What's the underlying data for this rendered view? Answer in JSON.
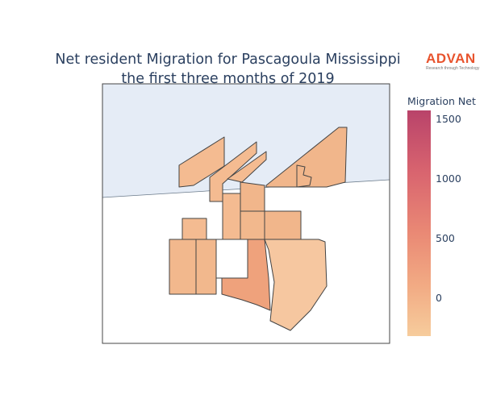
{
  "title": {
    "line1": "Net resident Migration for Pascagoula Mississippi",
    "line2": "the first three months of 2019"
  },
  "logo": {
    "name": "ADVAN",
    "tagline": "Research through Technology"
  },
  "colorbar": {
    "title": "Migration Net",
    "ticks": [
      "1500",
      "1000",
      "500",
      "0"
    ],
    "tick_values": [
      1500,
      1000,
      500,
      0
    ],
    "range": [
      -310,
      1600
    ],
    "colorscale": [
      "#f6cc9c",
      "#f2ab84",
      "#ea8a75",
      "#d9656f",
      "#b9436a"
    ]
  },
  "map": {
    "water_color": "#e5ecf6",
    "land_color": "#ffffff",
    "boundary_color": "#444444"
  }
}
